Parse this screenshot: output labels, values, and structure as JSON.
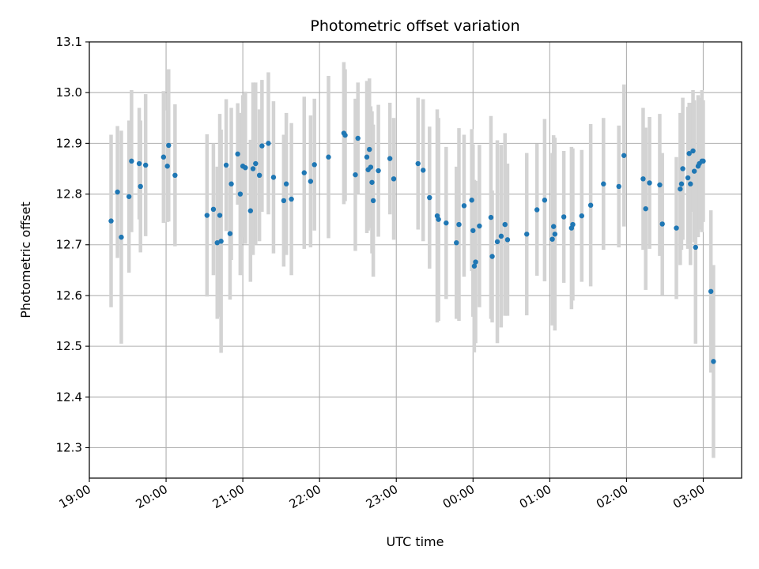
{
  "chart_data": {
    "type": "scatter",
    "title": "Photometric offset variation",
    "xlabel": "UTC time",
    "ylabel": "Photometric offset",
    "grid": true,
    "colors": {
      "points": "#1f77b4",
      "errorbars": "#d3d3d3",
      "grid": "#b0b0b0"
    },
    "x_unit": "UTC time (points after 00:00 belong to the following day)",
    "xlim": [
      "19:00",
      "03:30"
    ],
    "ylim": [
      12.24,
      13.1
    ],
    "xticks": [
      "19:00",
      "20:00",
      "21:00",
      "22:00",
      "23:00",
      "00:00",
      "01:00",
      "02:00",
      "03:00"
    ],
    "yticks": [
      "12.3",
      "12.4",
      "12.5",
      "12.6",
      "12.7",
      "12.8",
      "12.9",
      "13.0",
      "13.1"
    ],
    "points": [
      {
        "x": "19:17",
        "y": 12.747,
        "err": 0.17
      },
      {
        "x": "19:22",
        "y": 12.804,
        "err": 0.13
      },
      {
        "x": "19:25",
        "y": 12.715,
        "err": 0.21
      },
      {
        "x": "19:31",
        "y": 12.795,
        "err": 0.15
      },
      {
        "x": "19:33",
        "y": 12.865,
        "err": 0.14
      },
      {
        "x": "19:39",
        "y": 12.86,
        "err": 0.11
      },
      {
        "x": "19:40",
        "y": 12.815,
        "err": 0.13
      },
      {
        "x": "19:44",
        "y": 12.857,
        "err": 0.14
      },
      {
        "x": "19:58",
        "y": 12.873,
        "err": 0.13
      },
      {
        "x": "20:01",
        "y": 12.855,
        "err": 0.11
      },
      {
        "x": "20:02",
        "y": 12.896,
        "err": 0.15
      },
      {
        "x": "20:07",
        "y": 12.837,
        "err": 0.14
      },
      {
        "x": "20:32",
        "y": 12.758,
        "err": 0.16
      },
      {
        "x": "20:37",
        "y": 12.77,
        "err": 0.13
      },
      {
        "x": "20:40",
        "y": 12.704,
        "err": 0.15
      },
      {
        "x": "20:42",
        "y": 12.758,
        "err": 0.2
      },
      {
        "x": "20:43",
        "y": 12.707,
        "err": 0.22
      },
      {
        "x": "20:47",
        "y": 12.857,
        "err": 0.13
      },
      {
        "x": "20:50",
        "y": 12.722,
        "err": 0.13
      },
      {
        "x": "20:51",
        "y": 12.82,
        "err": 0.15
      },
      {
        "x": "20:56",
        "y": 12.879,
        "err": 0.1
      },
      {
        "x": "20:58",
        "y": 12.8,
        "err": 0.16
      },
      {
        "x": "21:00",
        "y": 12.855,
        "err": 0.14
      },
      {
        "x": "21:02",
        "y": 12.852,
        "err": 0.15
      },
      {
        "x": "21:06",
        "y": 12.767,
        "err": 0.14
      },
      {
        "x": "21:08",
        "y": 12.85,
        "err": 0.17
      },
      {
        "x": "21:10",
        "y": 12.86,
        "err": 0.16
      },
      {
        "x": "21:13",
        "y": 12.837,
        "err": 0.13
      },
      {
        "x": "21:15",
        "y": 12.895,
        "err": 0.13
      },
      {
        "x": "21:20",
        "y": 12.9,
        "err": 0.14
      },
      {
        "x": "21:24",
        "y": 12.833,
        "err": 0.15
      },
      {
        "x": "21:32",
        "y": 12.787,
        "err": 0.13
      },
      {
        "x": "21:34",
        "y": 12.82,
        "err": 0.14
      },
      {
        "x": "21:38",
        "y": 12.79,
        "err": 0.15
      },
      {
        "x": "21:48",
        "y": 12.842,
        "err": 0.15
      },
      {
        "x": "21:53",
        "y": 12.825,
        "err": 0.13
      },
      {
        "x": "21:56",
        "y": 12.858,
        "err": 0.13
      },
      {
        "x": "22:07",
        "y": 12.873,
        "err": 0.16
      },
      {
        "x": "22:19",
        "y": 12.92,
        "err": 0.14
      },
      {
        "x": "22:20",
        "y": 12.916,
        "err": 0.13
      },
      {
        "x": "22:28",
        "y": 12.838,
        "err": 0.15
      },
      {
        "x": "22:30",
        "y": 12.91,
        "err": 0.11
      },
      {
        "x": "22:37",
        "y": 12.873,
        "err": 0.15
      },
      {
        "x": "22:38",
        "y": 12.848,
        "err": 0.12
      },
      {
        "x": "22:39",
        "y": 12.888,
        "err": 0.14
      },
      {
        "x": "22:40",
        "y": 12.853,
        "err": 0.12
      },
      {
        "x": "22:41",
        "y": 12.823,
        "err": 0.14
      },
      {
        "x": "22:42",
        "y": 12.787,
        "err": 0.15
      },
      {
        "x": "22:46",
        "y": 12.846,
        "err": 0.13
      },
      {
        "x": "22:55",
        "y": 12.87,
        "err": 0.11
      },
      {
        "x": "22:58",
        "y": 12.83,
        "err": 0.12
      },
      {
        "x": "23:17",
        "y": 12.86,
        "err": 0.13
      },
      {
        "x": "23:21",
        "y": 12.847,
        "err": 0.14
      },
      {
        "x": "23:26",
        "y": 12.793,
        "err": 0.14
      },
      {
        "x": "23:32",
        "y": 12.757,
        "err": 0.21
      },
      {
        "x": "23:33",
        "y": 12.75,
        "err": 0.2
      },
      {
        "x": "23:39",
        "y": 12.743,
        "err": 0.15
      },
      {
        "x": "23:47",
        "y": 12.704,
        "err": 0.15
      },
      {
        "x": "23:49",
        "y": 12.74,
        "err": 0.19
      },
      {
        "x": "23:53",
        "y": 12.777,
        "err": 0.14
      },
      {
        "x": "23:59",
        "y": 12.788,
        "err": 0.14
      },
      {
        "x": "00:00",
        "y": 12.728,
        "err": 0.17
      },
      {
        "x": "00:01",
        "y": 12.658,
        "err": 0.17
      },
      {
        "x": "00:02",
        "y": 12.666,
        "err": 0.16
      },
      {
        "x": "00:05",
        "y": 12.737,
        "err": 0.16
      },
      {
        "x": "00:14",
        "y": 12.754,
        "err": 0.2
      },
      {
        "x": "00:15",
        "y": 12.677,
        "err": 0.13
      },
      {
        "x": "00:19",
        "y": 12.706,
        "err": 0.2
      },
      {
        "x": "00:22",
        "y": 12.717,
        "err": 0.18
      },
      {
        "x": "00:25",
        "y": 12.74,
        "err": 0.18
      },
      {
        "x": "00:27",
        "y": 12.71,
        "err": 0.15
      },
      {
        "x": "00:42",
        "y": 12.721,
        "err": 0.16
      },
      {
        "x": "00:50",
        "y": 12.769,
        "err": 0.13
      },
      {
        "x": "00:56",
        "y": 12.788,
        "err": 0.16
      },
      {
        "x": "01:02",
        "y": 12.711,
        "err": 0.17
      },
      {
        "x": "01:03",
        "y": 12.736,
        "err": 0.18
      },
      {
        "x": "01:04",
        "y": 12.721,
        "err": 0.19
      },
      {
        "x": "01:11",
        "y": 12.755,
        "err": 0.13
      },
      {
        "x": "01:17",
        "y": 12.733,
        "err": 0.16
      },
      {
        "x": "01:18",
        "y": 12.74,
        "err": 0.15
      },
      {
        "x": "01:25",
        "y": 12.757,
        "err": 0.13
      },
      {
        "x": "01:32",
        "y": 12.778,
        "err": 0.16
      },
      {
        "x": "01:42",
        "y": 12.82,
        "err": 0.13
      },
      {
        "x": "01:54",
        "y": 12.815,
        "err": 0.12
      },
      {
        "x": "01:58",
        "y": 12.876,
        "err": 0.14
      },
      {
        "x": "02:13",
        "y": 12.83,
        "err": 0.14
      },
      {
        "x": "02:15",
        "y": 12.771,
        "err": 0.16
      },
      {
        "x": "02:18",
        "y": 12.822,
        "err": 0.13
      },
      {
        "x": "02:26",
        "y": 12.818,
        "err": 0.14
      },
      {
        "x": "02:28",
        "y": 12.741,
        "err": 0.14
      },
      {
        "x": "02:39",
        "y": 12.733,
        "err": 0.14
      },
      {
        "x": "02:42",
        "y": 12.81,
        "err": 0.15
      },
      {
        "x": "02:43",
        "y": 12.82,
        "err": 0.13
      },
      {
        "x": "02:44",
        "y": 12.85,
        "err": 0.14
      },
      {
        "x": "02:48",
        "y": 12.832,
        "err": 0.14
      },
      {
        "x": "02:49",
        "y": 12.88,
        "err": 0.1
      },
      {
        "x": "02:50",
        "y": 12.82,
        "err": 0.16
      },
      {
        "x": "02:52",
        "y": 12.885,
        "err": 0.12
      },
      {
        "x": "02:53",
        "y": 12.845,
        "err": 0.14
      },
      {
        "x": "02:54",
        "y": 12.695,
        "err": 0.19
      },
      {
        "x": "02:56",
        "y": 12.855,
        "err": 0.14
      },
      {
        "x": "02:57",
        "y": 12.86,
        "err": 0.13
      },
      {
        "x": "02:59",
        "y": 12.865,
        "err": 0.14
      },
      {
        "x": "03:00",
        "y": 12.865,
        "err": 0.12
      },
      {
        "x": "03:06",
        "y": 12.608,
        "err": 0.16
      },
      {
        "x": "03:08",
        "y": 12.47,
        "err": 0.19
      }
    ]
  }
}
